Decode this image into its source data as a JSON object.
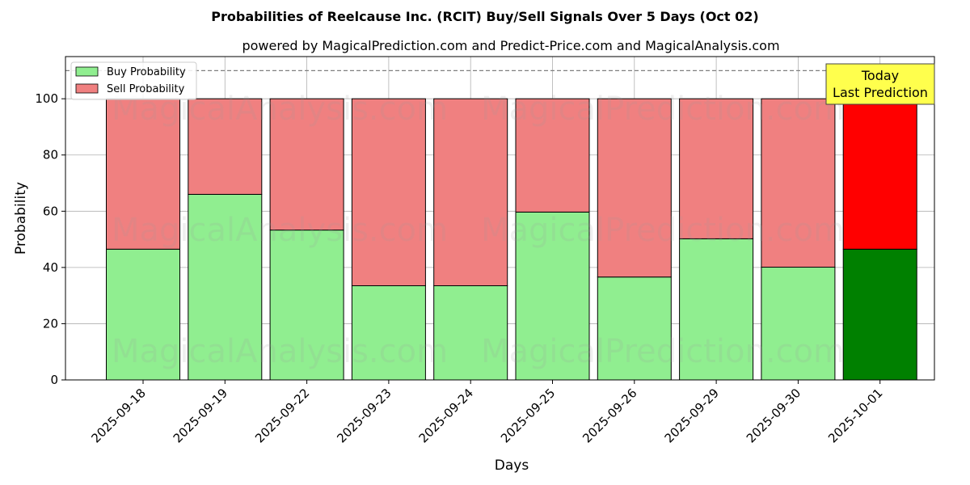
{
  "chart_data": {
    "type": "bar",
    "stacked": true,
    "title": "Probabilities of Reelcause Inc. (RCIT) Buy/Sell Signals Over 5 Days (Oct 02)",
    "subtitle": "powered by MagicalPrediction.com and Predict-Price.com and MagicalAnalysis.com",
    "xlabel": "Days",
    "ylabel": "Probability",
    "ylim": [
      0,
      115
    ],
    "yticks": [
      0,
      20,
      40,
      60,
      80,
      100
    ],
    "grid": true,
    "legend_position": "top-left",
    "reference_line": 110,
    "categories": [
      "2025-09-18",
      "2025-09-19",
      "2025-09-22",
      "2025-09-23",
      "2025-09-24",
      "2025-09-25",
      "2025-09-26",
      "2025-09-29",
      "2025-09-30",
      "2025-10-01"
    ],
    "series": [
      {
        "name": "Buy Probability",
        "color": "#90ee90",
        "highlight_color": "#008000",
        "values": [
          46.5,
          66.0,
          53.3,
          33.5,
          33.5,
          59.7,
          36.6,
          50.2,
          40.1,
          46.5
        ]
      },
      {
        "name": "Sell Probability",
        "color": "#f08080",
        "highlight_color": "#ff0000",
        "values": [
          53.5,
          34.0,
          46.7,
          66.5,
          66.5,
          40.3,
          63.4,
          49.8,
          59.9,
          53.5
        ]
      }
    ],
    "highlight_index": 9,
    "annotation": {
      "line1": "Today",
      "line2": "Last Prediction",
      "background": "#ffff4d"
    },
    "watermarks": [
      "MagicalAnalysis.com",
      "MagicalPrediction.com"
    ]
  }
}
